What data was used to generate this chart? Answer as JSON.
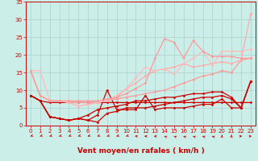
{
  "x": [
    0,
    1,
    2,
    3,
    4,
    5,
    6,
    7,
    8,
    9,
    10,
    11,
    12,
    13,
    14,
    15,
    16,
    17,
    18,
    19,
    20,
    21,
    22,
    23
  ],
  "lines": [
    {
      "y": [
        8.5,
        7.0,
        6.5,
        6.5,
        6.5,
        6.5,
        6.5,
        6.5,
        6.5,
        6.5,
        6.5,
        6.5,
        6.5,
        6.5,
        6.5,
        6.5,
        6.5,
        6.5,
        6.5,
        6.5,
        6.5,
        6.5,
        6.5,
        6.5
      ],
      "color": "#cc0000",
      "lw": 0.9
    },
    {
      "y": [
        8.5,
        7.0,
        2.5,
        2.0,
        1.5,
        2.0,
        1.5,
        3.0,
        10.0,
        4.5,
        4.5,
        4.5,
        8.5,
        4.5,
        5.0,
        5.0,
        5.0,
        5.5,
        6.0,
        6.0,
        7.5,
        5.0,
        5.0,
        12.5
      ],
      "color": "#cc0000",
      "lw": 0.9
    },
    {
      "y": [
        8.5,
        7.0,
        2.5,
        2.0,
        1.5,
        2.0,
        1.5,
        1.0,
        3.5,
        4.0,
        5.0,
        5.0,
        5.0,
        5.5,
        6.0,
        6.5,
        7.0,
        7.5,
        8.0,
        8.0,
        8.5,
        7.5,
        5.0,
        12.5
      ],
      "color": "#cc0000",
      "lw": 0.9
    },
    {
      "y": [
        8.5,
        7.0,
        2.5,
        2.0,
        1.5,
        2.0,
        3.0,
        4.5,
        5.0,
        5.5,
        6.0,
        7.0,
        7.0,
        7.5,
        8.0,
        8.0,
        8.5,
        9.0,
        9.0,
        9.5,
        9.5,
        8.0,
        5.0,
        12.5
      ],
      "color": "#cc0000",
      "lw": 0.9
    },
    {
      "y": [
        15.5,
        8.5,
        7.0,
        7.0,
        6.5,
        6.5,
        6.5,
        6.5,
        7.0,
        7.5,
        8.0,
        8.5,
        9.0,
        9.5,
        10.0,
        11.0,
        12.0,
        13.0,
        14.0,
        14.5,
        15.5,
        15.0,
        18.5,
        19.0
      ],
      "color": "#ff9999",
      "lw": 0.9
    },
    {
      "y": [
        15.5,
        8.5,
        7.0,
        7.0,
        6.5,
        5.5,
        6.0,
        6.5,
        7.0,
        8.0,
        10.5,
        12.0,
        14.0,
        15.5,
        16.0,
        16.5,
        17.5,
        16.5,
        17.0,
        17.5,
        18.0,
        17.5,
        18.5,
        31.5
      ],
      "color": "#ffaaaa",
      "lw": 0.9
    },
    {
      "y": [
        15.5,
        15.5,
        7.0,
        7.0,
        6.5,
        5.5,
        6.0,
        6.5,
        7.0,
        8.5,
        10.5,
        13.5,
        16.5,
        15.5,
        16.0,
        14.5,
        17.5,
        19.0,
        21.0,
        17.0,
        21.0,
        21.0,
        21.0,
        21.5
      ],
      "color": "#ffbbbb",
      "lw": 0.9
    },
    {
      "y": [
        15.5,
        8.5,
        7.0,
        7.0,
        7.0,
        7.0,
        7.0,
        7.0,
        7.5,
        8.0,
        9.0,
        10.5,
        12.0,
        19.0,
        24.5,
        23.5,
        19.0,
        24.0,
        21.0,
        19.5,
        19.5,
        19.5,
        19.0,
        19.0
      ],
      "color": "#ff9999",
      "lw": 0.9
    }
  ],
  "markers": [
    {
      "color": "#cc0000",
      "size": 2.0
    },
    {
      "color": "#cc0000",
      "size": 2.0
    },
    {
      "color": "#cc0000",
      "size": 2.0
    },
    {
      "color": "#cc0000",
      "size": 2.0
    },
    {
      "color": "#ff9999",
      "size": 2.0
    },
    {
      "color": "#ffaaaa",
      "size": 2.0
    },
    {
      "color": "#ffbbbb",
      "size": 2.0
    },
    {
      "color": "#ff9999",
      "size": 2.0
    }
  ],
  "xlabel": "Vent moyen/en rafales ( km/h )",
  "xlim": [
    -0.5,
    23.5
  ],
  "ylim": [
    0,
    35
  ],
  "yticks": [
    0,
    5,
    10,
    15,
    20,
    25,
    30,
    35
  ],
  "xticks": [
    0,
    1,
    2,
    3,
    4,
    5,
    6,
    7,
    8,
    9,
    10,
    11,
    12,
    13,
    14,
    15,
    16,
    17,
    18,
    19,
    20,
    21,
    22,
    23
  ],
  "bg_color": "#cceee8",
  "grid_color": "#aacccc",
  "xlabel_color": "#cc0000",
  "tick_color": "#cc0000",
  "xlabel_fontsize": 6.5,
  "tick_fontsize": 5.0,
  "wind_dirs": [
    225,
    225,
    225,
    225,
    225,
    225,
    225,
    225,
    225,
    225,
    225,
    270,
    270,
    270,
    315,
    315,
    315,
    315,
    315,
    315,
    0,
    0,
    90,
    90
  ]
}
